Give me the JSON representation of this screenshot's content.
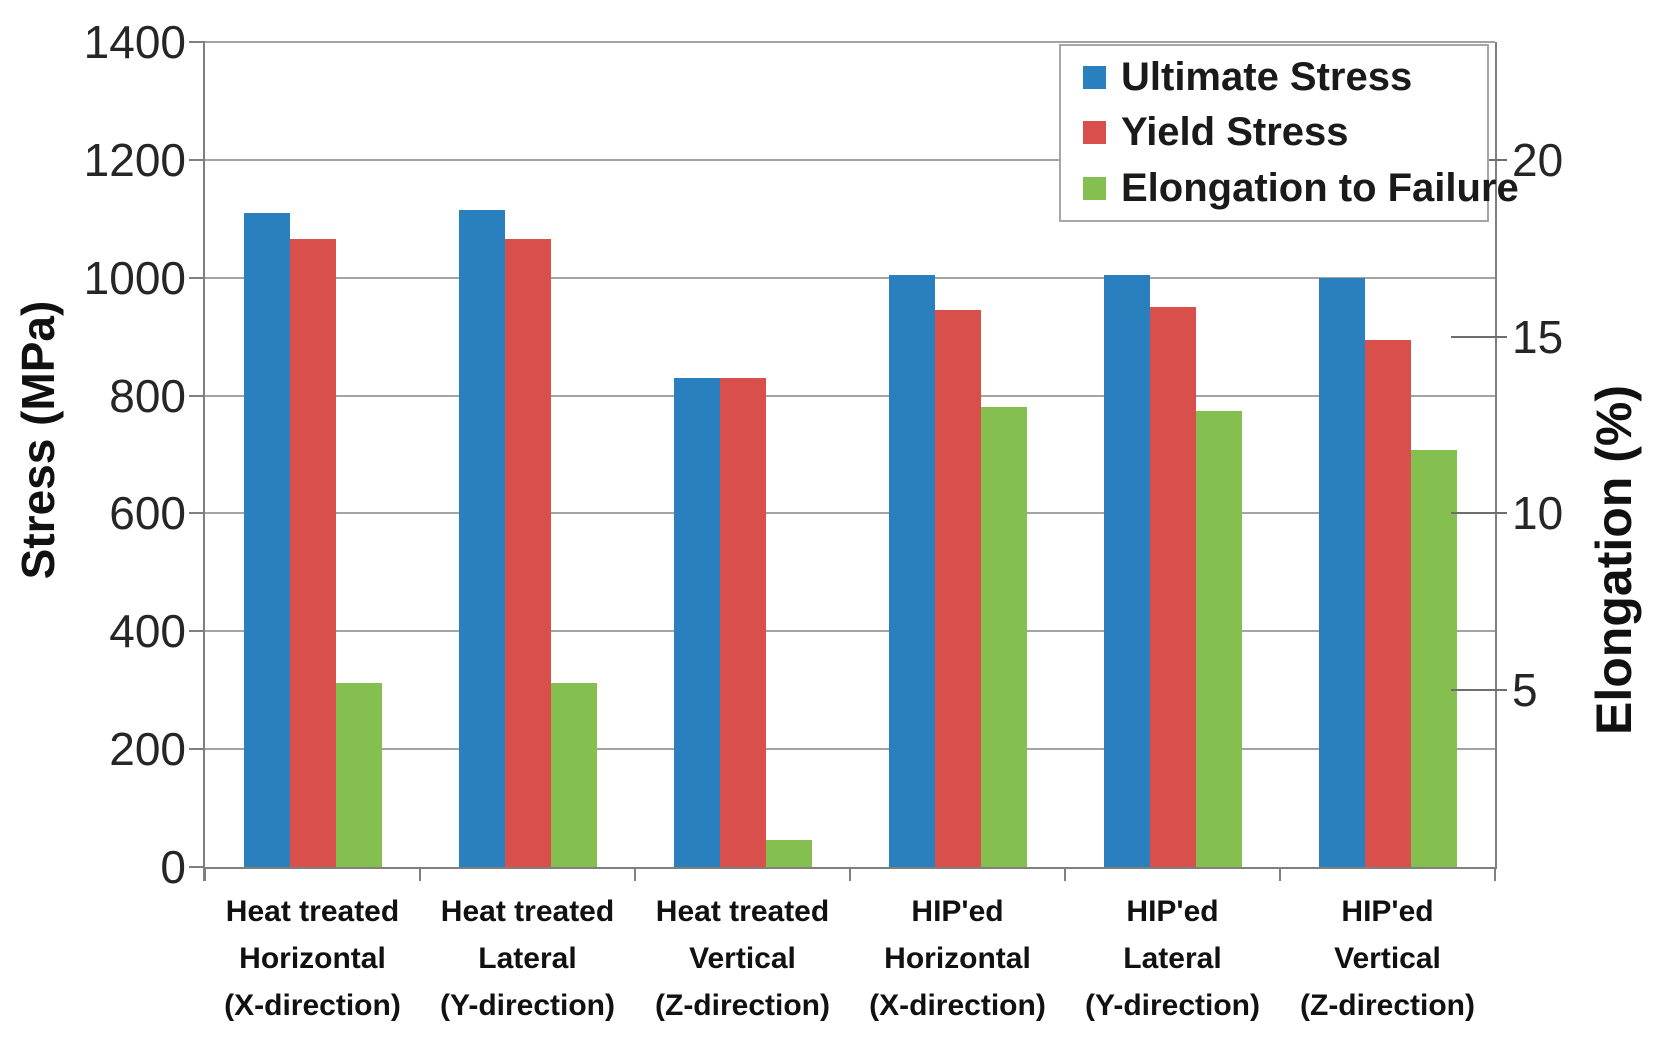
{
  "chart_data": {
    "type": "bar",
    "title": "",
    "categories": [
      [
        "Heat treated",
        "Horizontal",
        "(X-direction)"
      ],
      [
        "Heat treated",
        "Lateral",
        "(Y-direction)"
      ],
      [
        "Heat treated",
        "Vertical",
        "(Z-direction)"
      ],
      [
        "HIP'ed",
        "Horizontal",
        "(X-direction)"
      ],
      [
        "HIP'ed",
        "Lateral",
        "(Y-direction)"
      ],
      [
        "HIP'ed",
        "Vertical",
        "(Z-direction)"
      ]
    ],
    "series": [
      {
        "name": "Ultimate Stress",
        "axis": "left",
        "color": "#2a7fbe",
        "values": [
          1110,
          1115,
          830,
          1005,
          1005,
          1000
        ]
      },
      {
        "name": "Yield Stress",
        "axis": "left",
        "color": "#d94f4c",
        "values": [
          1065,
          1065,
          830,
          945,
          950,
          895
        ]
      },
      {
        "name": "Elongation to Failure",
        "axis": "right",
        "color": "#84bf50",
        "values": [
          5.2,
          5.2,
          0.75,
          13.0,
          12.9,
          11.8
        ]
      }
    ],
    "left_axis": {
      "label": "Stress (MPa)",
      "min": 0,
      "max": 1400,
      "ticks": [
        0,
        200,
        400,
        600,
        800,
        1000,
        1200,
        1400
      ]
    },
    "right_axis": {
      "label": "Elongation (%)",
      "min": 0,
      "max": 23.33,
      "ticks": [
        5,
        10,
        15,
        20
      ]
    },
    "legend_position": "top-right",
    "grid": true,
    "colors": {
      "grid": "#a3a3a3",
      "axis": "#7f7f7f"
    }
  }
}
